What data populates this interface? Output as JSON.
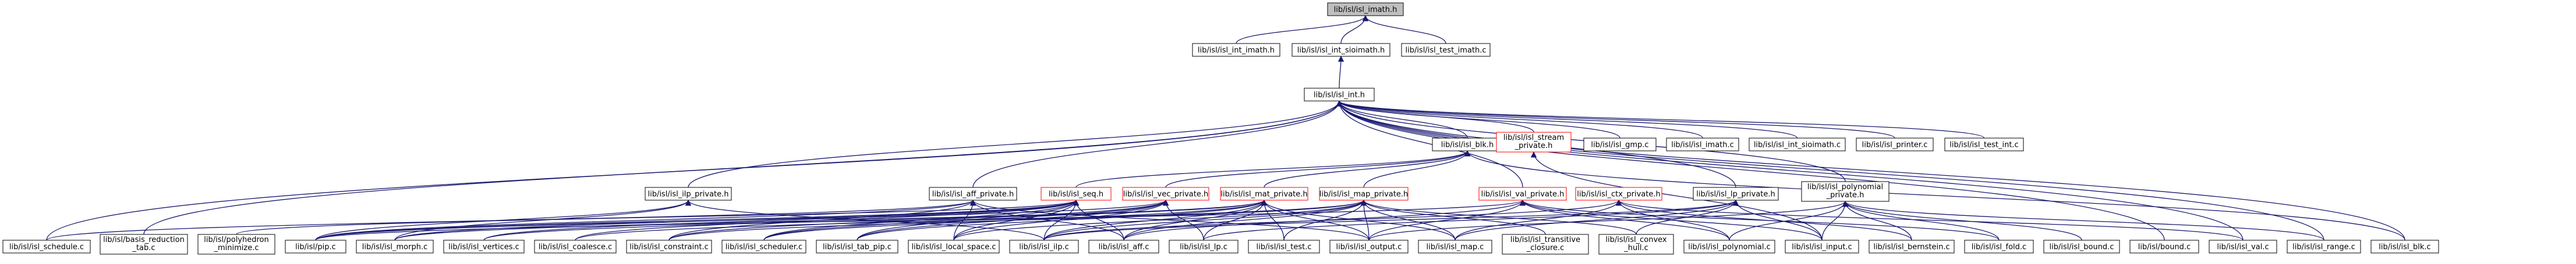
{
  "graph": {
    "colors": {
      "edge": "#191970",
      "node_border": "#000000",
      "red_border": "#ff0000",
      "root_fill": "#bfbfbf"
    },
    "nodes": [
      {
        "id": "imath_h",
        "label": [
          "lib/isl/isl_imath.h"
        ]
      },
      {
        "id": "int_imath_h",
        "label": [
          "lib/isl/isl_int_imath.h"
        ]
      },
      {
        "id": "int_sioimath_h",
        "label": [
          "lib/isl/isl_int_sioimath.h"
        ]
      },
      {
        "id": "test_imath_c",
        "label": [
          "lib/isl/isl_test_imath.c"
        ]
      },
      {
        "id": "int_h",
        "label": [
          "lib/isl/isl_int.h"
        ]
      },
      {
        "id": "blk_h",
        "label": [
          "lib/isl/isl_blk.h"
        ]
      },
      {
        "id": "stream_private_h",
        "label": [
          "lib/isl/isl_stream",
          "_private.h"
        ]
      },
      {
        "id": "gmp_c",
        "label": [
          "lib/isl/isl_gmp.c"
        ]
      },
      {
        "id": "imath_c",
        "label": [
          "lib/isl/isl_imath.c"
        ]
      },
      {
        "id": "int_sioimath_c",
        "label": [
          "lib/isl/isl_int_sioimath.c"
        ]
      },
      {
        "id": "printer_c",
        "label": [
          "lib/isl/isl_printer.c"
        ]
      },
      {
        "id": "test_int_c",
        "label": [
          "lib/isl/isl_test_int.c"
        ]
      },
      {
        "id": "ilp_private_h",
        "label": [
          "lib/isl/isl_ilp_private.h"
        ]
      },
      {
        "id": "aff_private_h",
        "label": [
          "lib/isl/isl_aff_private.h"
        ]
      },
      {
        "id": "seq_h",
        "label": [
          "lib/isl/isl_seq.h"
        ]
      },
      {
        "id": "vec_private_h",
        "label": [
          "lib/isl/isl_vec_private.h"
        ]
      },
      {
        "id": "mat_private_h",
        "label": [
          "lib/isl/isl_mat_private.h"
        ]
      },
      {
        "id": "map_private_h",
        "label": [
          "lib/isl/isl_map_private.h"
        ]
      },
      {
        "id": "val_private_h",
        "label": [
          "lib/isl/isl_val_private.h"
        ]
      },
      {
        "id": "ctx_private_h",
        "label": [
          "lib/isl/isl_ctx_private.h"
        ]
      },
      {
        "id": "lp_private_h",
        "label": [
          "lib/isl/isl_lp_private.h"
        ]
      },
      {
        "id": "polynomial_private_h",
        "label": [
          "lib/isl/isl_polynomial",
          "_private.h"
        ]
      },
      {
        "id": "schedule_c",
        "label": [
          "lib/isl/isl_schedule.c"
        ]
      },
      {
        "id": "basis_reduction_tab_c",
        "label": [
          "lib/isl/basis_reduction",
          "_tab.c"
        ]
      },
      {
        "id": "polyhedron_minimize_c",
        "label": [
          "lib/isl/polyhedron",
          "_minimize.c"
        ]
      },
      {
        "id": "pip_c",
        "label": [
          "lib/isl/pip.c"
        ]
      },
      {
        "id": "morph_c",
        "label": [
          "lib/isl/isl_morph.c"
        ]
      },
      {
        "id": "vertices_c",
        "label": [
          "lib/isl/isl_vertices.c"
        ]
      },
      {
        "id": "coalesce_c",
        "label": [
          "lib/isl/isl_coalesce.c"
        ]
      },
      {
        "id": "constraint_c",
        "label": [
          "lib/isl/isl_constraint.c"
        ]
      },
      {
        "id": "scheduler_c",
        "label": [
          "lib/isl/isl_scheduler.c"
        ]
      },
      {
        "id": "tab_pip_c",
        "label": [
          "lib/isl/isl_tab_pip.c"
        ]
      },
      {
        "id": "local_space_c",
        "label": [
          "lib/isl/isl_local_space.c"
        ]
      },
      {
        "id": "ilp_c",
        "label": [
          "lib/isl/isl_ilp.c"
        ]
      },
      {
        "id": "aff_c",
        "label": [
          "lib/isl/isl_aff.c"
        ]
      },
      {
        "id": "lp_c",
        "label": [
          "lib/isl/isl_lp.c"
        ]
      },
      {
        "id": "test_c",
        "label": [
          "lib/isl/isl_test.c"
        ]
      },
      {
        "id": "output_c",
        "label": [
          "lib/isl/isl_output.c"
        ]
      },
      {
        "id": "map_c",
        "label": [
          "lib/isl/isl_map.c"
        ]
      },
      {
        "id": "transitive_closure_c",
        "label": [
          "lib/isl/isl_transitive",
          "_closure.c"
        ]
      },
      {
        "id": "convex_hull_c",
        "label": [
          "lib/isl/isl_convex",
          "_hull.c"
        ]
      },
      {
        "id": "polynomial_c",
        "label": [
          "lib/isl/isl_polynomial.c"
        ]
      },
      {
        "id": "input_c",
        "label": [
          "lib/isl/isl_input.c"
        ]
      },
      {
        "id": "bernstein_c",
        "label": [
          "lib/isl/isl_bernstein.c"
        ]
      },
      {
        "id": "fold_c",
        "label": [
          "lib/isl/isl_fold.c"
        ]
      },
      {
        "id": "isl_bound_c",
        "label": [
          "lib/isl/isl_bound.c"
        ]
      },
      {
        "id": "bound_c",
        "label": [
          "lib/isl/bound.c"
        ]
      },
      {
        "id": "val_c",
        "label": [
          "lib/isl/isl_val.c"
        ]
      },
      {
        "id": "range_c",
        "label": [
          "lib/isl/isl_range.c"
        ]
      },
      {
        "id": "blk_c",
        "label": [
          "lib/isl/isl_blk.c"
        ]
      }
    ],
    "edges": [
      [
        "int_imath_h",
        "imath_h"
      ],
      [
        "int_sioimath_h",
        "imath_h"
      ],
      [
        "test_imath_c",
        "imath_h"
      ],
      [
        "int_h",
        "int_sioimath_h"
      ],
      [
        "blk_h",
        "int_h"
      ],
      [
        "stream_private_h",
        "int_h"
      ],
      [
        "gmp_c",
        "int_h"
      ],
      [
        "imath_c",
        "int_h"
      ],
      [
        "int_sioimath_c",
        "int_h"
      ],
      [
        "printer_c",
        "int_h"
      ],
      [
        "test_int_c",
        "int_h"
      ],
      [
        "ilp_private_h",
        "int_h"
      ],
      [
        "aff_private_h",
        "int_h"
      ],
      [
        "val_private_h",
        "int_h"
      ],
      [
        "lp_private_h",
        "int_h"
      ],
      [
        "polynomial_private_h",
        "int_h"
      ],
      [
        "schedule_c",
        "int_h"
      ],
      [
        "basis_reduction_tab_c",
        "int_h"
      ],
      [
        "bound_c",
        "int_h"
      ],
      [
        "val_c",
        "int_h"
      ],
      [
        "range_c",
        "int_h"
      ],
      [
        "blk_c",
        "int_h"
      ],
      [
        "seq_h",
        "blk_h"
      ],
      [
        "vec_private_h",
        "blk_h"
      ],
      [
        "mat_private_h",
        "blk_h"
      ],
      [
        "map_private_h",
        "blk_h"
      ],
      [
        "blk_c",
        "blk_h"
      ],
      [
        "input_c",
        "stream_private_h"
      ],
      [
        "pip_c",
        "ilp_private_h"
      ],
      [
        "morph_c",
        "ilp_private_h"
      ],
      [
        "ilp_c",
        "ilp_private_h"
      ],
      [
        "schedule_c",
        "aff_private_h"
      ],
      [
        "pip_c",
        "aff_private_h"
      ],
      [
        "constraint_c",
        "aff_private_h"
      ],
      [
        "local_space_c",
        "aff_private_h"
      ],
      [
        "aff_c",
        "aff_private_h"
      ],
      [
        "output_c",
        "aff_private_h"
      ],
      [
        "polyhedron_minimize_c",
        "seq_h"
      ],
      [
        "pip_c",
        "seq_h"
      ],
      [
        "morph_c",
        "seq_h"
      ],
      [
        "vertices_c",
        "seq_h"
      ],
      [
        "coalesce_c",
        "seq_h"
      ],
      [
        "scheduler_c",
        "seq_h"
      ],
      [
        "tab_pip_c",
        "seq_h"
      ],
      [
        "local_space_c",
        "seq_h"
      ],
      [
        "ilp_c",
        "seq_h"
      ],
      [
        "aff_c",
        "seq_h"
      ],
      [
        "pip_c",
        "vec_private_h"
      ],
      [
        "constraint_c",
        "vec_private_h"
      ],
      [
        "scheduler_c",
        "vec_private_h"
      ],
      [
        "tab_pip_c",
        "vec_private_h"
      ],
      [
        "local_space_c",
        "vec_private_h"
      ],
      [
        "lp_c",
        "vec_private_h"
      ],
      [
        "morph_c",
        "mat_private_h"
      ],
      [
        "vertices_c",
        "mat_private_h"
      ],
      [
        "scheduler_c",
        "mat_private_h"
      ],
      [
        "tab_pip_c",
        "mat_private_h"
      ],
      [
        "ilp_c",
        "mat_private_h"
      ],
      [
        "aff_c",
        "mat_private_h"
      ],
      [
        "lp_c",
        "mat_private_h"
      ],
      [
        "test_c",
        "mat_private_h"
      ],
      [
        "output_c",
        "mat_private_h"
      ],
      [
        "map_c",
        "mat_private_h"
      ],
      [
        "coalesce_c",
        "map_private_h"
      ],
      [
        "constraint_c",
        "map_private_h"
      ],
      [
        "local_space_c",
        "map_private_h"
      ],
      [
        "ilp_c",
        "map_private_h"
      ],
      [
        "aff_c",
        "map_private_h"
      ],
      [
        "test_c",
        "map_private_h"
      ],
      [
        "output_c",
        "map_private_h"
      ],
      [
        "map_c",
        "map_private_h"
      ],
      [
        "transitive_closure_c",
        "map_private_h"
      ],
      [
        "convex_hull_c",
        "map_private_h"
      ],
      [
        "pip_c",
        "val_private_h"
      ],
      [
        "aff_c",
        "val_private_h"
      ],
      [
        "output_c",
        "val_private_h"
      ],
      [
        "polynomial_c",
        "val_private_h"
      ],
      [
        "input_c",
        "val_private_h"
      ],
      [
        "fold_c",
        "val_private_h"
      ],
      [
        "ilp_c",
        "ctx_private_h"
      ],
      [
        "map_c",
        "ctx_private_h"
      ],
      [
        "polynomial_c",
        "ctx_private_h"
      ],
      [
        "bernstein_c",
        "ctx_private_h"
      ],
      [
        "val_c",
        "ctx_private_h"
      ],
      [
        "ilp_c",
        "lp_private_h"
      ],
      [
        "lp_c",
        "lp_private_h"
      ],
      [
        "map_c",
        "lp_private_h"
      ],
      [
        "convex_hull_c",
        "lp_private_h"
      ],
      [
        "input_c",
        "lp_private_h"
      ],
      [
        "output_c",
        "polynomial_private_h"
      ],
      [
        "polynomial_c",
        "polynomial_private_h"
      ],
      [
        "input_c",
        "polynomial_private_h"
      ],
      [
        "bernstein_c",
        "polynomial_private_h"
      ],
      [
        "fold_c",
        "polynomial_private_h"
      ],
      [
        "isl_bound_c",
        "polynomial_private_h"
      ],
      [
        "range_c",
        "polynomial_private_h"
      ]
    ]
  }
}
